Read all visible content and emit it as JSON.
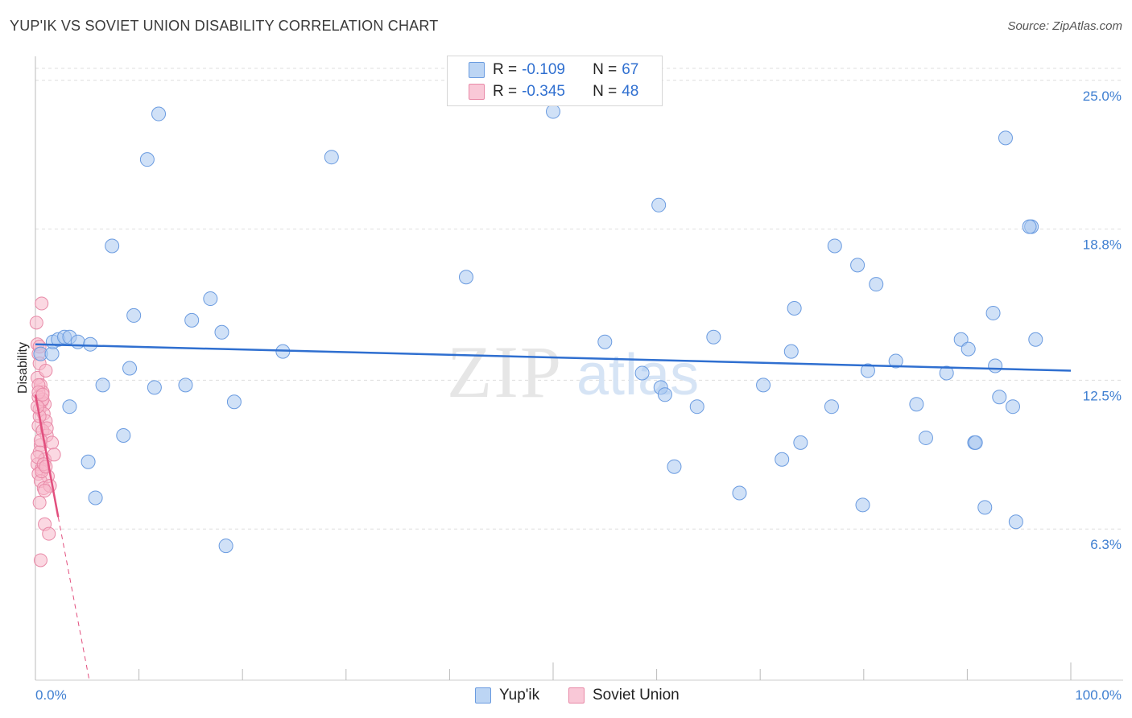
{
  "title": "YUP'IK VS SOVIET UNION DISABILITY CORRELATION CHART",
  "source": "Source: ZipAtlas.com",
  "legend": {
    "rows": [
      {
        "r_label": "R =",
        "r_value": "-0.109",
        "n_label": "N =",
        "n_value": "67"
      },
      {
        "r_label": "R =",
        "r_value": "-0.345",
        "n_label": "N =",
        "n_value": "48"
      }
    ]
  },
  "chart_data": {
    "type": "scatter",
    "title": "YUP'IK VS SOVIET UNION DISABILITY CORRELATION CHART",
    "xlabel": "",
    "ylabel": "Disability",
    "xlim": [
      0,
      100
    ],
    "ylim": [
      0,
      26
    ],
    "y_ticks": [
      6.3,
      12.5,
      18.8,
      25.0
    ],
    "y_tick_labels": [
      "6.3%",
      "12.5%",
      "18.8%",
      "25.0%"
    ],
    "x_tick_labels": [
      "0.0%",
      "100.0%"
    ],
    "colors": {
      "yupik_fill": "#a9c8f0",
      "yupik_stroke": "#6a9be0",
      "yupik_line": "#2f6fd0",
      "soviet_fill": "#f7b8cb",
      "soviet_stroke": "#e889a7",
      "soviet_line": "#e24f7e"
    },
    "series": [
      {
        "name": "Yup'ik",
        "r": -0.109,
        "n": 67,
        "trend": {
          "x": [
            0,
            100
          ],
          "y": [
            14.0,
            12.9
          ]
        },
        "points": [
          [
            0.5,
            13.6
          ],
          [
            1.6,
            13.6
          ],
          [
            1.7,
            14.1
          ],
          [
            2.2,
            14.2
          ],
          [
            2.8,
            14.3
          ],
          [
            3.3,
            14.3
          ],
          [
            4.1,
            14.1
          ],
          [
            5.3,
            14.0
          ],
          [
            3.3,
            11.4
          ],
          [
            5.1,
            9.1
          ],
          [
            5.8,
            7.6
          ],
          [
            6.5,
            12.3
          ],
          [
            7.4,
            18.1
          ],
          [
            8.5,
            10.2
          ],
          [
            9.1,
            13.0
          ],
          [
            9.5,
            15.2
          ],
          [
            10.8,
            21.7
          ],
          [
            11.5,
            12.2
          ],
          [
            11.9,
            23.6
          ],
          [
            14.5,
            12.3
          ],
          [
            15.1,
            15.0
          ],
          [
            16.9,
            15.9
          ],
          [
            18.0,
            14.5
          ],
          [
            18.4,
            5.6
          ],
          [
            19.2,
            11.6
          ],
          [
            23.9,
            13.7
          ],
          [
            28.6,
            21.8
          ],
          [
            41.6,
            16.8
          ],
          [
            50.0,
            23.7
          ],
          [
            55.0,
            14.1
          ],
          [
            58.6,
            12.8
          ],
          [
            60.2,
            19.8
          ],
          [
            60.4,
            12.2
          ],
          [
            60.8,
            11.9
          ],
          [
            61.7,
            8.9
          ],
          [
            63.9,
            11.4
          ],
          [
            65.5,
            14.3
          ],
          [
            68.0,
            7.8
          ],
          [
            70.3,
            12.3
          ],
          [
            72.1,
            9.2
          ],
          [
            73.0,
            13.7
          ],
          [
            73.3,
            15.5
          ],
          [
            73.9,
            9.9
          ],
          [
            76.9,
            11.4
          ],
          [
            77.2,
            18.1
          ],
          [
            79.4,
            17.3
          ],
          [
            79.9,
            7.3
          ],
          [
            80.4,
            12.9
          ],
          [
            81.2,
            16.5
          ],
          [
            83.1,
            13.3
          ],
          [
            85.1,
            11.5
          ],
          [
            86.0,
            10.1
          ],
          [
            88.0,
            12.8
          ],
          [
            89.4,
            14.2
          ],
          [
            90.1,
            13.8
          ],
          [
            90.7,
            9.9
          ],
          [
            90.8,
            9.9
          ],
          [
            91.7,
            7.2
          ],
          [
            92.5,
            15.3
          ],
          [
            92.7,
            13.1
          ],
          [
            93.1,
            11.8
          ],
          [
            93.7,
            22.6
          ],
          [
            94.4,
            11.4
          ],
          [
            94.7,
            6.6
          ],
          [
            96.2,
            18.9
          ],
          [
            96.6,
            14.2
          ],
          [
            96.0,
            18.9
          ]
        ]
      },
      {
        "name": "Soviet Union",
        "r": -0.345,
        "n": 48,
        "trend": {
          "x": [
            0,
            2.2
          ],
          "y": [
            11.9,
            6.8
          ],
          "dashed_to": {
            "x": 5.2,
            "y": 0
          }
        },
        "points": [
          [
            0.1,
            14.9
          ],
          [
            0.2,
            14.0
          ],
          [
            0.3,
            13.6
          ],
          [
            0.4,
            13.2
          ],
          [
            0.2,
            12.6
          ],
          [
            0.5,
            12.3
          ],
          [
            0.7,
            12.0
          ],
          [
            0.3,
            11.8
          ],
          [
            0.6,
            11.6
          ],
          [
            0.9,
            11.5
          ],
          [
            0.4,
            11.3
          ],
          [
            0.8,
            11.1
          ],
          [
            1.0,
            10.8
          ],
          [
            0.3,
            10.6
          ],
          [
            0.7,
            10.4
          ],
          [
            1.1,
            10.2
          ],
          [
            0.5,
            9.8
          ],
          [
            0.4,
            9.5
          ],
          [
            0.9,
            9.2
          ],
          [
            0.2,
            9.0
          ],
          [
            0.6,
            8.8
          ],
          [
            0.3,
            8.6
          ],
          [
            1.2,
            8.5
          ],
          [
            0.5,
            8.3
          ],
          [
            0.8,
            8.0
          ],
          [
            0.4,
            7.4
          ],
          [
            0.9,
            6.5
          ],
          [
            1.3,
            6.1
          ],
          [
            0.5,
            5.0
          ],
          [
            1.6,
            9.9
          ],
          [
            1.8,
            9.4
          ],
          [
            0.6,
            15.7
          ],
          [
            1.0,
            12.9
          ],
          [
            0.3,
            12.3
          ],
          [
            0.7,
            11.7
          ],
          [
            0.4,
            11.0
          ],
          [
            1.1,
            10.5
          ],
          [
            0.2,
            9.3
          ],
          [
            0.6,
            8.7
          ],
          [
            1.4,
            8.1
          ],
          [
            0.9,
            7.9
          ],
          [
            0.3,
            12.0
          ],
          [
            0.5,
            10.0
          ],
          [
            0.8,
            9.0
          ],
          [
            0.2,
            11.4
          ],
          [
            1.0,
            8.9
          ],
          [
            0.4,
            13.9
          ],
          [
            0.7,
            11.9
          ]
        ]
      }
    ],
    "legend_position": "bottom"
  },
  "bottom_legend": [
    {
      "label": "Yup'ik"
    },
    {
      "label": "Soviet Union"
    }
  ],
  "watermark": "ZIPatlas"
}
